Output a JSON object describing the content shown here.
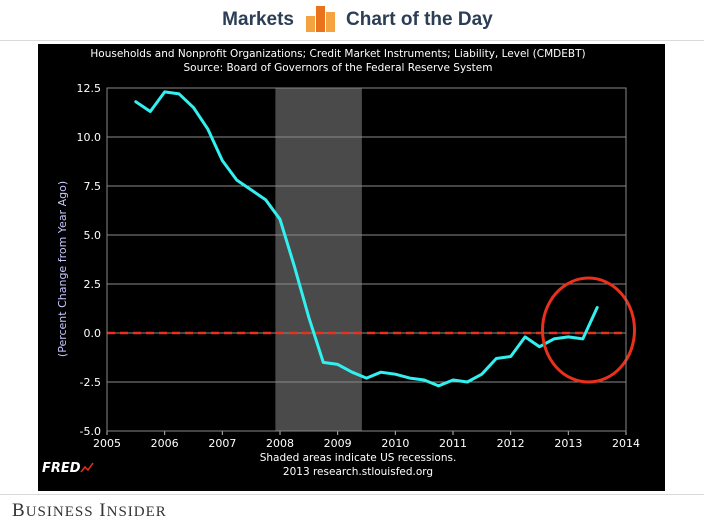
{
  "header": {
    "left_label": "Markets",
    "right_label": "Chart of the Day",
    "icon": "bar-chart-icon",
    "accent": "#f28c28"
  },
  "footer": {
    "brand_big1": "B",
    "brand_small1": "USINESS",
    "brand_big2": "I",
    "brand_small2": "NSIDER",
    "fred_logo": "FRED"
  },
  "chart_data": {
    "type": "line",
    "title": "Households and Nonprofit Organizations; Credit Market Instruments; Liability, Level (CMDEBT)",
    "subtitle": "Source: Board of Governors of the Federal Reserve System",
    "xlabel": "",
    "ylabel": "(Percent Change from Year Ago)",
    "xlim": [
      2005,
      2014
    ],
    "ylim": [
      -5.0,
      12.5
    ],
    "x_ticks": [
      "2005",
      "2006",
      "2007",
      "2008",
      "2009",
      "2010",
      "2011",
      "2012",
      "2013",
      "2014"
    ],
    "y_ticks": [
      "12.5",
      "10.0",
      "7.5",
      "5.0",
      "2.5",
      "0.0",
      "-2.5",
      "-5.0"
    ],
    "y_tick_values": [
      12.5,
      10.0,
      7.5,
      5.0,
      2.5,
      0.0,
      -2.5,
      -5.0
    ],
    "grid": true,
    "recession": {
      "start": 2007.92,
      "end": 2009.42,
      "color": "#4a4a4a"
    },
    "zero_line_color": "#e8301c",
    "highlight_circle": {
      "x": 2013.35,
      "y": 0.15,
      "color": "#e8301c"
    },
    "note_line1": "Shaded areas indicate US recessions.",
    "note_line2": "2013 research.stlouisfed.org",
    "series": [
      {
        "color": "#33f0f0",
        "x": [
          2005.5,
          2005.75,
          2006.0,
          2006.25,
          2006.5,
          2006.75,
          2007.0,
          2007.25,
          2007.5,
          2007.75,
          2008.0,
          2008.25,
          2008.5,
          2008.75,
          2009.0,
          2009.25,
          2009.5,
          2009.75,
          2010.0,
          2010.25,
          2010.5,
          2010.75,
          2011.0,
          2011.25,
          2011.5,
          2011.75,
          2012.0,
          2012.25,
          2012.5,
          2012.75,
          2013.0,
          2013.25,
          2013.5
        ],
        "values": [
          11.8,
          11.3,
          12.3,
          12.2,
          11.5,
          10.4,
          8.8,
          7.8,
          7.3,
          6.8,
          5.8,
          3.4,
          0.8,
          -1.5,
          -1.6,
          -2.0,
          -2.3,
          -2.0,
          -2.1,
          -2.3,
          -2.4,
          -2.7,
          -2.4,
          -2.5,
          -2.1,
          -1.3,
          -1.2,
          -0.2,
          -0.7,
          -0.3,
          -0.2,
          -0.3,
          1.3
        ]
      }
    ]
  }
}
